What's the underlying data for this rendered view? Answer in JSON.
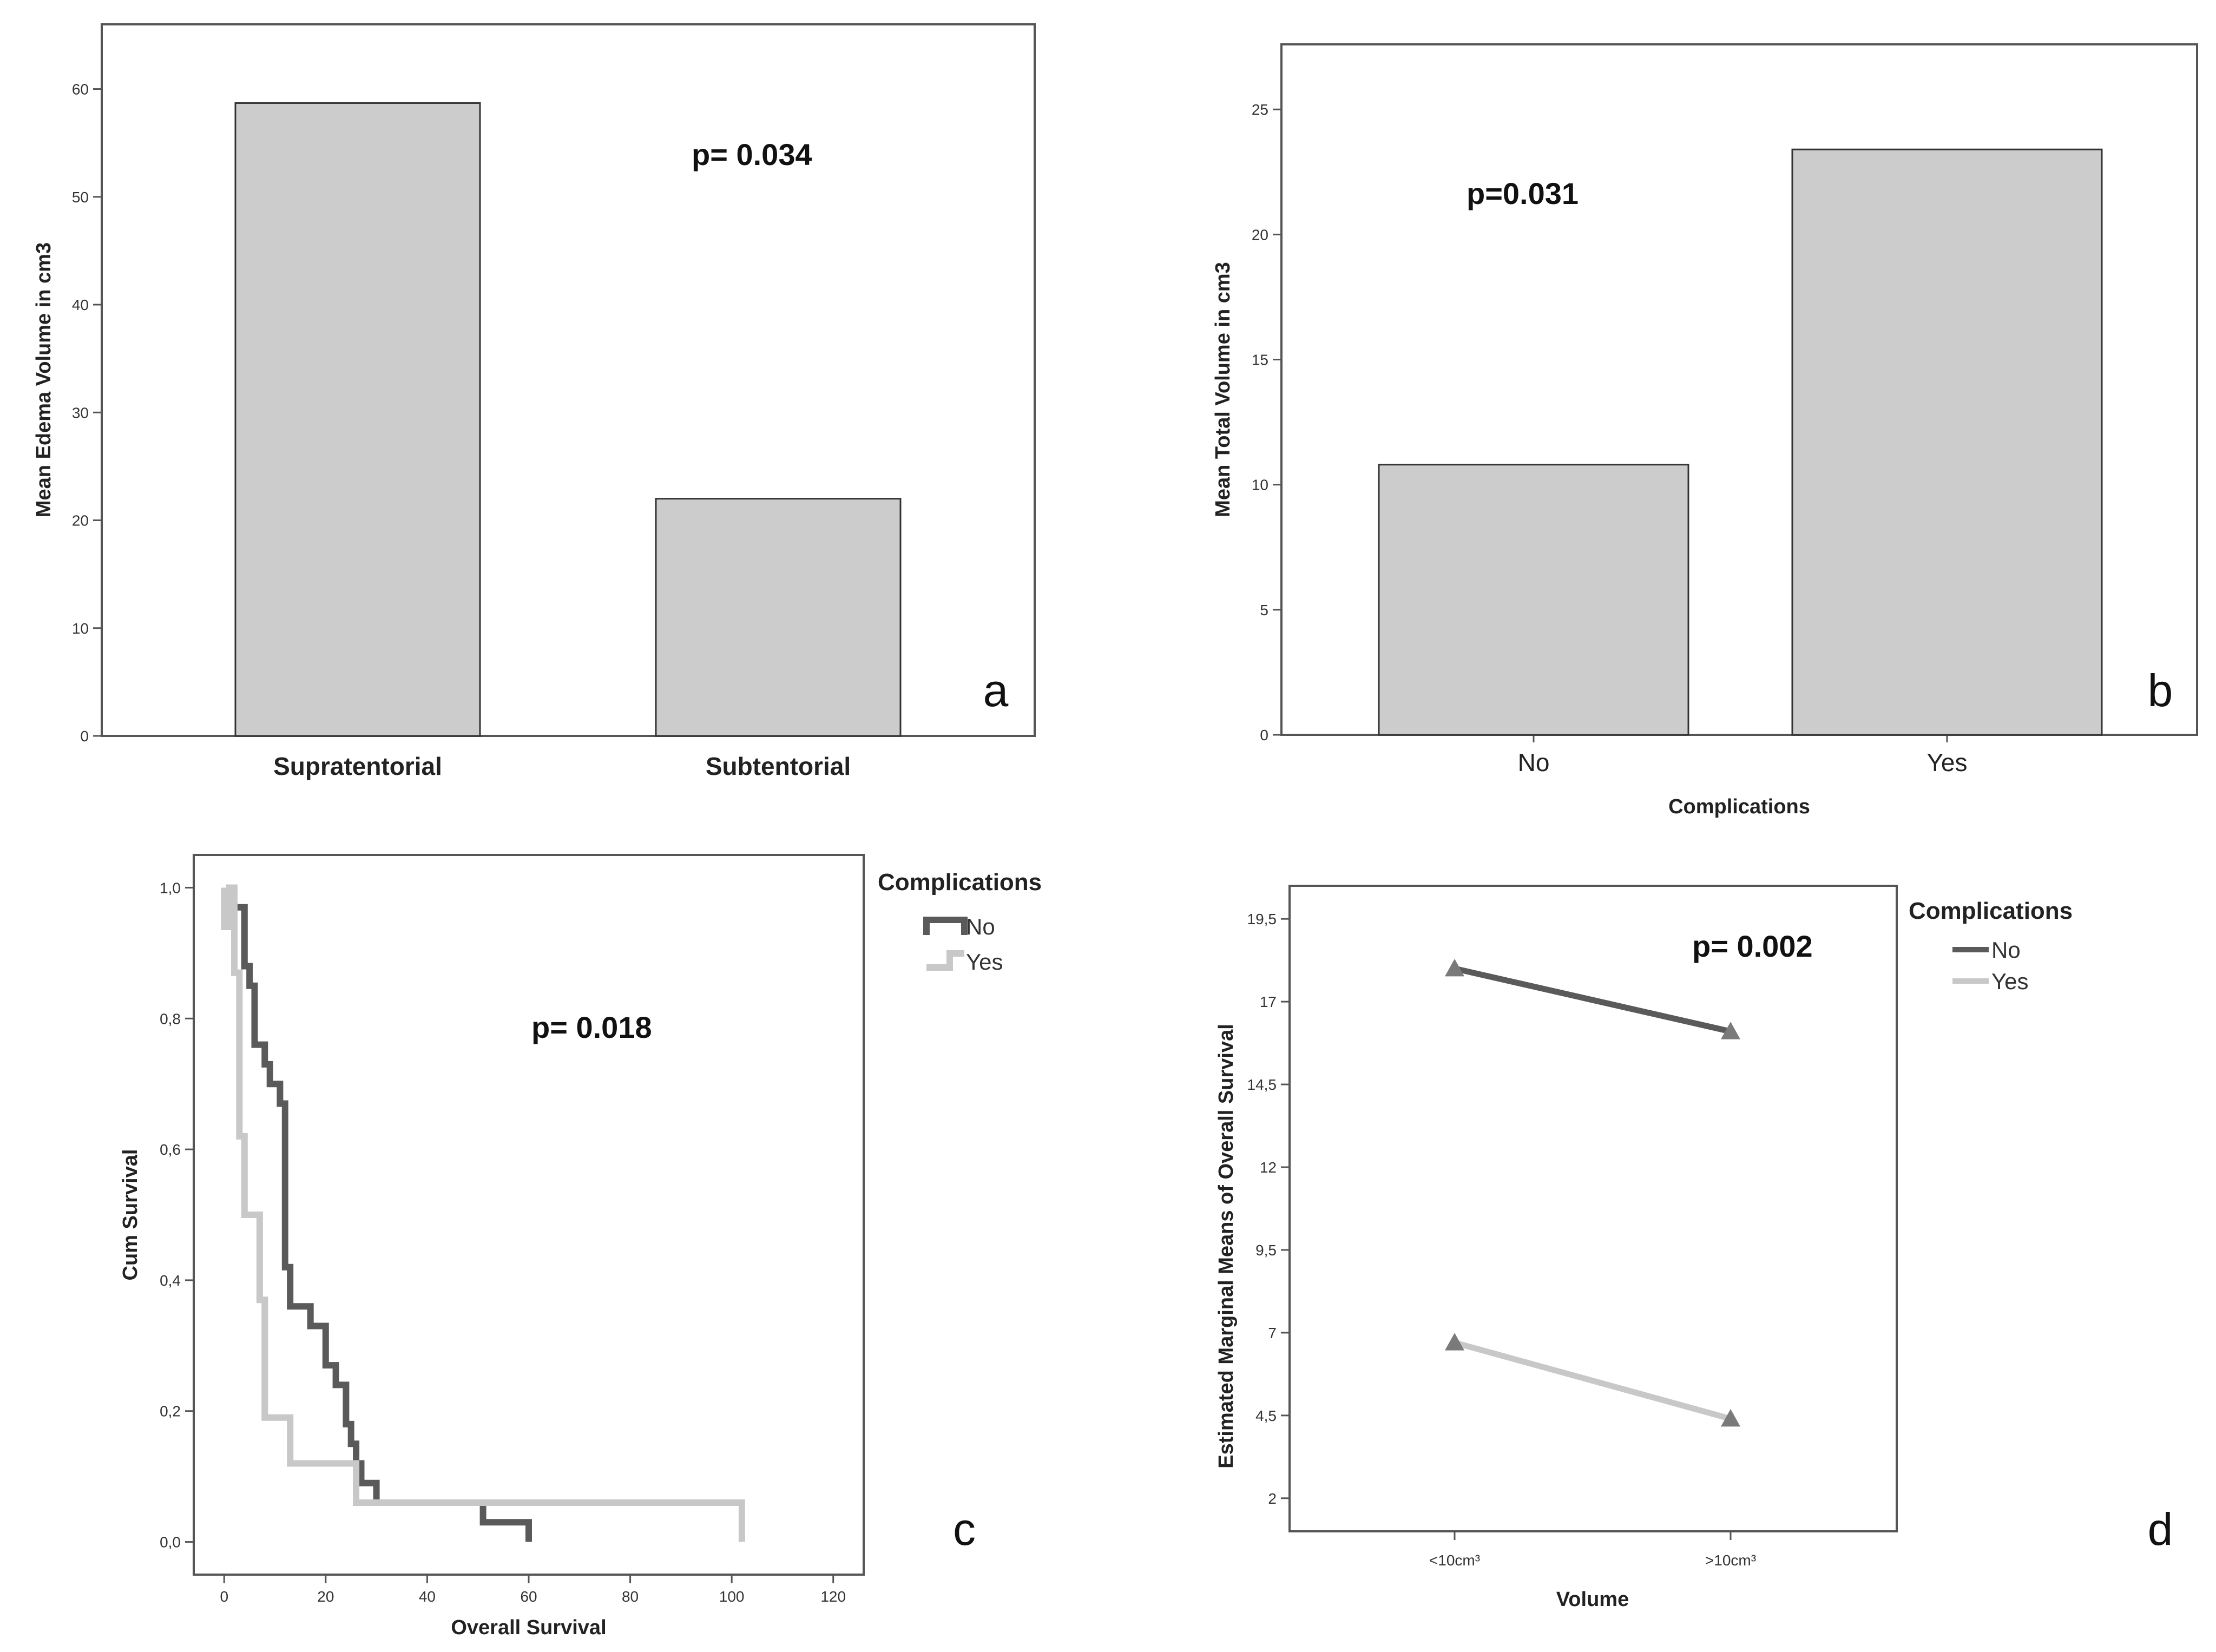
{
  "chart_data": [
    {
      "panel": "a",
      "type": "bar",
      "categories": [
        "Supratentorial",
        "Subtentorial"
      ],
      "values": [
        58.7,
        22.0
      ],
      "ylabel": "Mean Edema Volume in cm3",
      "xlabel": "",
      "ylim": [
        0,
        66
      ],
      "yticks": [
        0,
        10,
        20,
        30,
        40,
        50,
        60
      ],
      "annotation": "p= 0.034",
      "bar_color": "#cccccc"
    },
    {
      "panel": "b",
      "type": "bar",
      "categories": [
        "No",
        "Yes"
      ],
      "values": [
        10.8,
        23.4
      ],
      "ylabel": "Mean Total Volume in cm3",
      "xlabel": "Complications",
      "ylim": [
        0,
        27.6
      ],
      "yticks": [
        0,
        5,
        10,
        15,
        20,
        25
      ],
      "annotation": "p=0.031",
      "bar_color": "#cccccc"
    },
    {
      "panel": "c",
      "type": "line",
      "subtype": "kaplan-meier",
      "xlabel": "Overall Survival",
      "ylabel": "Cum Survival",
      "xlim": [
        -6,
        126
      ],
      "ylim": [
        -0.05,
        1.05
      ],
      "xticks": [
        "0",
        "20",
        "40",
        "60",
        "80",
        "100",
        "120"
      ],
      "yticks": [
        "0,0",
        "0,2",
        "0,4",
        "0,6",
        "0,8",
        "1,0"
      ],
      "legend_title": "Complications",
      "annotation": "p= 0.018",
      "series": [
        {
          "name": "No",
          "color": "#5a5a5a",
          "points": [
            [
              2,
              1.0
            ],
            [
              2,
              0.97
            ],
            [
              4,
              0.97
            ],
            [
              4,
              0.88
            ],
            [
              5,
              0.88
            ],
            [
              5,
              0.85
            ],
            [
              6,
              0.85
            ],
            [
              6,
              0.76
            ],
            [
              8,
              0.76
            ],
            [
              8,
              0.73
            ],
            [
              9,
              0.73
            ],
            [
              9,
              0.7
            ],
            [
              11,
              0.7
            ],
            [
              11,
              0.67
            ],
            [
              12,
              0.67
            ],
            [
              12,
              0.42
            ],
            [
              13,
              0.42
            ],
            [
              13,
              0.36
            ],
            [
              17,
              0.36
            ],
            [
              17,
              0.33
            ],
            [
              20,
              0.33
            ],
            [
              20,
              0.27
            ],
            [
              22,
              0.27
            ],
            [
              22,
              0.24
            ],
            [
              24,
              0.24
            ],
            [
              24,
              0.18
            ],
            [
              25,
              0.18
            ],
            [
              25,
              0.15
            ],
            [
              26,
              0.15
            ],
            [
              26,
              0.12
            ],
            [
              27,
              0.12
            ],
            [
              27,
              0.09
            ],
            [
              30,
              0.09
            ],
            [
              30,
              0.06
            ],
            [
              51,
              0.06
            ],
            [
              51,
              0.03
            ],
            [
              60,
              0.03
            ],
            [
              60,
              0.0
            ]
          ]
        },
        {
          "name": "Yes",
          "color": "#c8c8c8",
          "points": [
            [
              0,
              1.0
            ],
            [
              0,
              0.94
            ],
            [
              1,
              0.94
            ],
            [
              1,
              1.0
            ],
            [
              2,
              1.0
            ],
            [
              2,
              0.87
            ],
            [
              3,
              0.87
            ],
            [
              3,
              0.62
            ],
            [
              4,
              0.62
            ],
            [
              4,
              0.5
            ],
            [
              7,
              0.5
            ],
            [
              7,
              0.37
            ],
            [
              8,
              0.37
            ],
            [
              8,
              0.19
            ],
            [
              13,
              0.19
            ],
            [
              13,
              0.12
            ],
            [
              26,
              0.12
            ],
            [
              26,
              0.06
            ],
            [
              102,
              0.06
            ],
            [
              102,
              0.0
            ]
          ]
        }
      ]
    },
    {
      "panel": "d",
      "type": "line",
      "categories": [
        "<10cm³",
        ">10cm³"
      ],
      "xlabel": "Volume",
      "ylabel": "Estimated Marginal Means of Overall Survival",
      "ylim": [
        1.0,
        20.5
      ],
      "yticks": [
        "2",
        "4,5",
        "7",
        "9,5",
        "12",
        "14,5",
        "17",
        "19,5"
      ],
      "ytick_values": [
        2,
        4.5,
        7,
        9.5,
        12,
        14.5,
        17,
        19.5
      ],
      "legend_title": "Complications",
      "annotation": "p= 0.002",
      "series": [
        {
          "name": "No",
          "values": [
            18.0,
            16.1
          ],
          "color": "#5a5a5a"
        },
        {
          "name": "Yes",
          "values": [
            6.7,
            4.4
          ],
          "color": "#c8c8c8"
        }
      ]
    }
  ],
  "panel_letters": [
    "a",
    "b",
    "c",
    "d"
  ]
}
